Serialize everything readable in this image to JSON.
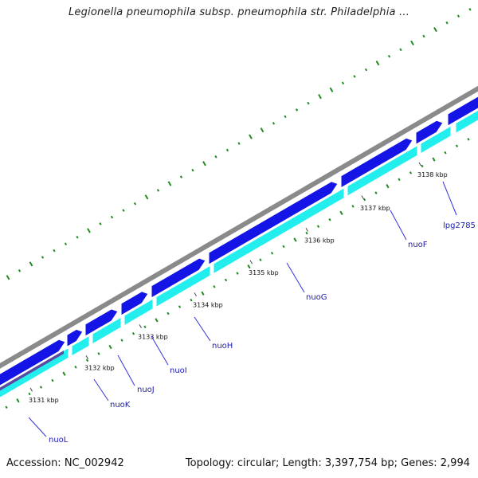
{
  "title": "Legionella pneumophila subsp. pneumophila str. Philadelphia ...",
  "footer": {
    "accession": "Accession: NC_002942",
    "summary": "Topology: circular; Length: 3,397,754 bp; Genes: 2,994"
  },
  "colors": {
    "backbone": "#8a8a8a",
    "forward_cds": "#1414e6",
    "reverse_cds": "#22eeee",
    "reverse_cds_dark": "#5a4aa0",
    "gc_skew": "#1e8c1e",
    "label_line": "#3333dd"
  },
  "ticks": [
    {
      "label": "3131 kbp"
    },
    {
      "label": "3132 kbp"
    },
    {
      "label": "3133 kbp"
    },
    {
      "label": "3134 kbp"
    },
    {
      "label": "3135 kbp"
    },
    {
      "label": "3136 kbp"
    },
    {
      "label": "3137 kbp"
    },
    {
      "label": "3138 kbp"
    }
  ],
  "genes": [
    {
      "label": "nuoL"
    },
    {
      "label": "nuoK"
    },
    {
      "label": "nuoJ"
    },
    {
      "label": "nuoI"
    },
    {
      "label": "nuoH"
    },
    {
      "label": "nuoG"
    },
    {
      "label": "nuoF"
    },
    {
      "label": "lpg2785"
    }
  ]
}
